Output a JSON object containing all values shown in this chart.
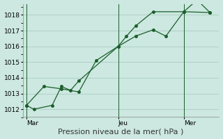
{
  "title": "Pression niveau de la mer( hPa )",
  "background_color": "#cce8e0",
  "grid_color": "#b0d0c8",
  "line_color": "#1a5e2a",
  "ylim": [
    1011.5,
    1018.7
  ],
  "yticks": [
    1012,
    1013,
    1014,
    1015,
    1016,
    1017,
    1018
  ],
  "xtick_labels": [
    "Mar",
    "Jeu",
    "Mer"
  ],
  "xtick_positions": [
    0.0,
    0.5,
    0.857
  ],
  "vline_positions": [
    0.0,
    0.5,
    0.857
  ],
  "line1_x": [
    0.0,
    0.04,
    0.14,
    0.19,
    0.24,
    0.285,
    0.5,
    0.545,
    0.595,
    0.69,
    0.857,
    1.0
  ],
  "line1_y": [
    1012.25,
    1012.0,
    1012.25,
    1013.45,
    1013.2,
    1013.8,
    1016.0,
    1016.65,
    1017.3,
    1018.2,
    1018.2,
    1018.15
  ],
  "line2_x": [
    0.0,
    0.095,
    0.19,
    0.285,
    0.38,
    0.5,
    0.595,
    0.69,
    0.76,
    0.857,
    0.93,
    1.0
  ],
  "line2_y": [
    1012.25,
    1013.45,
    1013.3,
    1013.1,
    1015.1,
    1016.0,
    1016.65,
    1017.05,
    1016.65,
    1018.2,
    1018.95,
    1018.15
  ],
  "xlabel_fontsize": 8,
  "tick_fontsize": 6.5,
  "marker_size": 2.5,
  "linewidth": 0.9
}
